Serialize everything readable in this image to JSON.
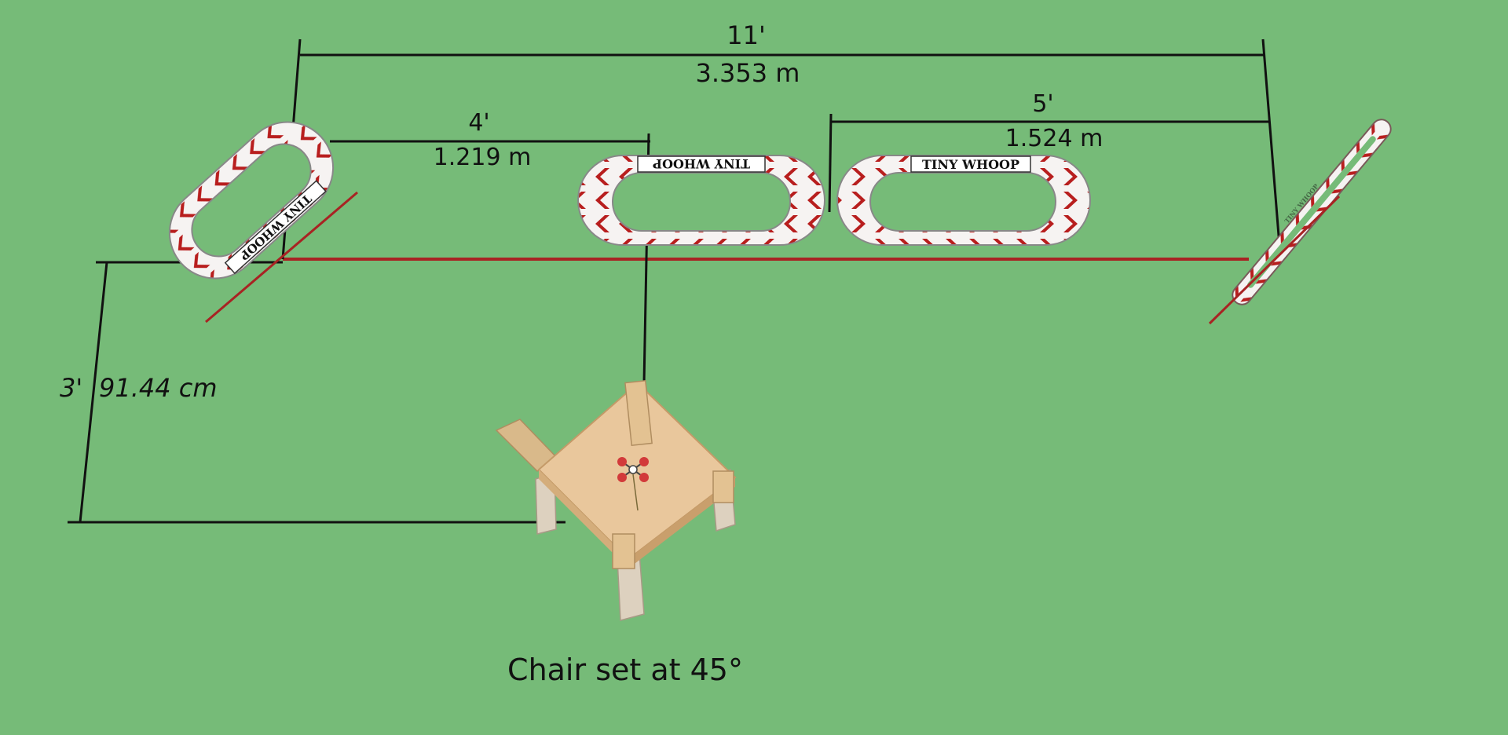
{
  "colors": {
    "background": "#76bb78",
    "dimension_line": "#111111",
    "baseline": "#a82323",
    "gate_stripe": "#b81e1e",
    "gate_fill": "#f6f3f2",
    "table_top": "#e9c79c",
    "table_leg": "#d8c4a6"
  },
  "dimensions": {
    "overall": {
      "imperial": "11'",
      "metric": "3.353 m"
    },
    "gate_spacing_left": {
      "imperial": "4'",
      "metric": "1.219 m"
    },
    "gate_spacing_right": {
      "imperial": "5'",
      "metric": "1.524 m"
    },
    "chair_offset": {
      "imperial": "3'",
      "metric": "91.44 cm"
    }
  },
  "gates": [
    {
      "id": "gate-1",
      "banner": "TINY WHOOP",
      "orientation": "angled-left"
    },
    {
      "id": "gate-2",
      "banner": "TINY WHOOP",
      "orientation": "flat"
    },
    {
      "id": "gate-3",
      "banner": "TINY WHOOP",
      "orientation": "flat"
    },
    {
      "id": "gate-4",
      "banner": "TINY WHOOP",
      "orientation": "angled-right"
    }
  ],
  "chair": {
    "caption": "Chair set at 45°",
    "icon": "chair-icon",
    "drone_icon": "drone-icon"
  }
}
